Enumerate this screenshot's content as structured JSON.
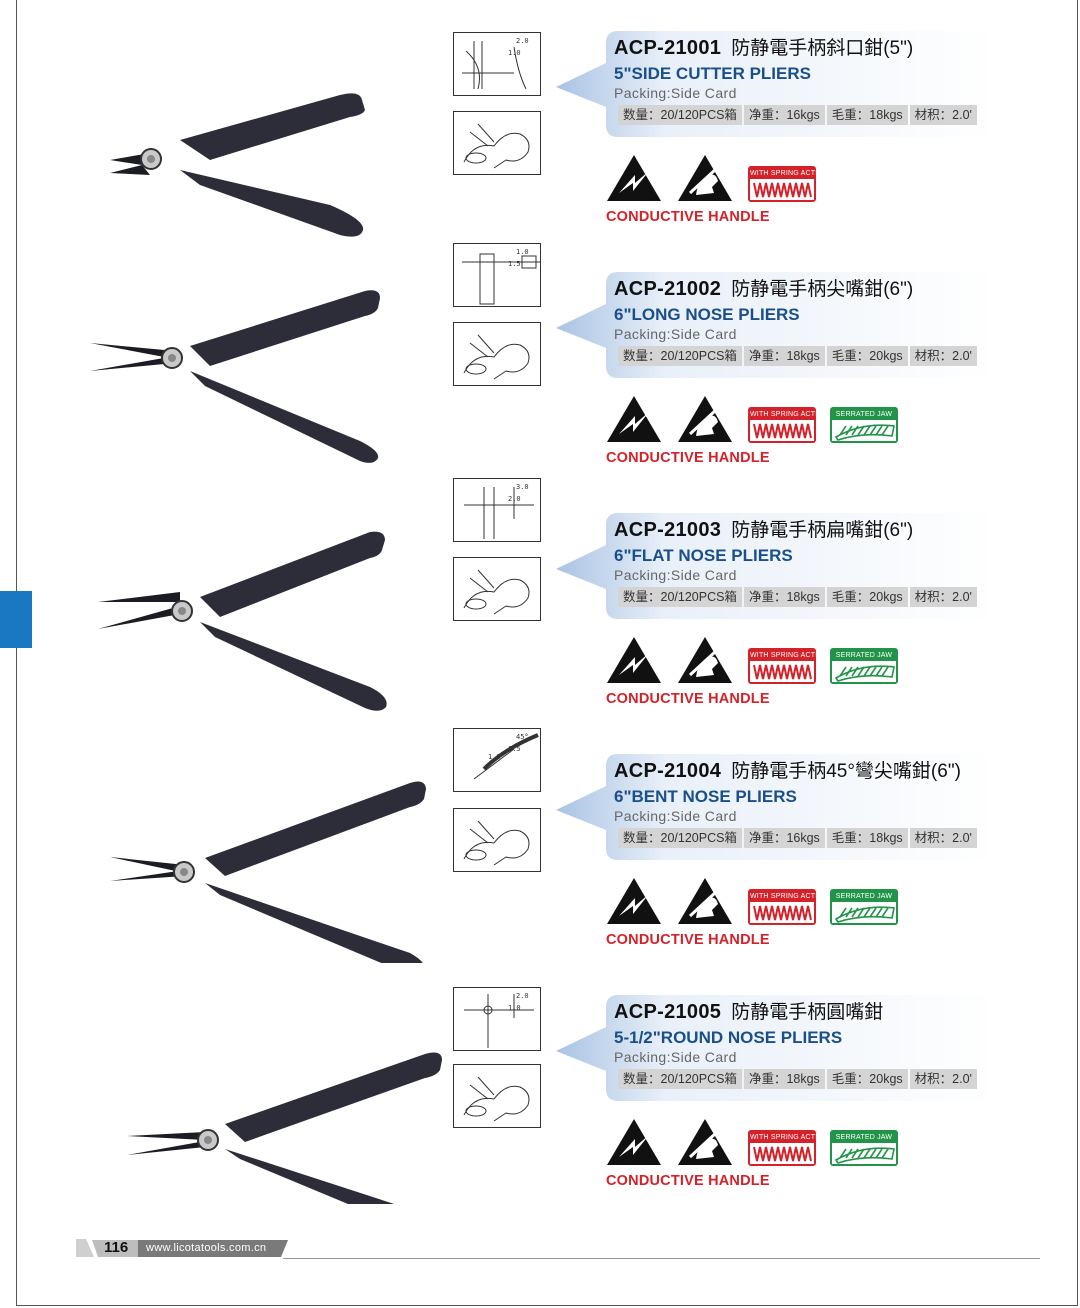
{
  "page": {
    "number": "116",
    "website": "www.licotatools.com.cn"
  },
  "labels": {
    "conductive": "CONDUCTIVE HANDLE",
    "spring_action": "WITH SPRING ACTION",
    "serrated_jaw": "SERRATED JAW"
  },
  "products": [
    {
      "code": "ACP-21001",
      "name_cn": "防静電手柄斜口鉗(5\")",
      "name_en": "5\"SIDE CUTTER PLIERS",
      "packing": "Packing:Side Card",
      "specs": [
        "数量：20/120PCS箱",
        "净重：16kgs",
        "毛重：18kgs",
        "材积：2.0'"
      ],
      "serrated": false,
      "diagram_dims": [
        "2.0",
        "1.0"
      ]
    },
    {
      "code": "ACP-21002",
      "name_cn": "防静電手柄尖嘴鉗(6\")",
      "name_en": "6\"LONG NOSE PLIERS",
      "packing": "Packing:Side Card",
      "specs": [
        "数量：20/120PCS箱",
        "净重：18kgs",
        "毛重：20kgs",
        "材积：2.0'"
      ],
      "serrated": true,
      "diagram_dims": [
        "1.0",
        "1.5"
      ]
    },
    {
      "code": "ACP-21003",
      "name_cn": "防静電手柄扁嘴鉗(6\")",
      "name_en": "6\"FLAT NOSE PLIERS",
      "packing": "Packing:Side Card",
      "specs": [
        "数量：20/120PCS箱",
        "净重：18kgs",
        "毛重：20kgs",
        "材积：2.0'"
      ],
      "serrated": true,
      "diagram_dims": [
        "3.0",
        "2.0"
      ]
    },
    {
      "code": "ACP-21004",
      "name_cn": "防静電手柄45°彎尖嘴鉗(6\")",
      "name_en": "6\"BENT NOSE PLIERS",
      "packing": "Packing:Side Card",
      "specs": [
        "数量：20/120PCS箱",
        "净重：16kgs",
        "毛重：18kgs",
        "材积：2.0'"
      ],
      "serrated": true,
      "diagram_dims": [
        "45°",
        "1.5",
        "1.0"
      ]
    },
    {
      "code": "ACP-21005",
      "name_cn": "防静電手柄圓嘴鉗",
      "name_en": "5-1/2\"ROUND NOSE PLIERS",
      "packing": "Packing:Side Card",
      "specs": [
        "数量：20/120PCS箱",
        "净重：18kgs",
        "毛重：20kgs",
        "材积：2.0'"
      ],
      "serrated": true,
      "diagram_dims": [
        "2.0",
        "1.0"
      ]
    }
  ]
}
